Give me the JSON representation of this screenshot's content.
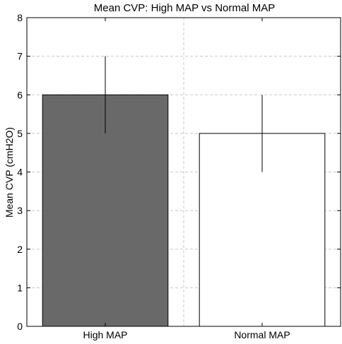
{
  "chart_data": {
    "type": "bar",
    "title": "Mean CVP: High MAP vs Normal MAP",
    "xlabel": "",
    "ylabel": "Mean CVP (cmH2O)",
    "categories": [
      "High MAP",
      "Normal MAP"
    ],
    "values": [
      6,
      5
    ],
    "error": [
      [
        5,
        7
      ],
      [
        4,
        6
      ]
    ],
    "bar_colors": [
      "#696969",
      "#ffffff"
    ],
    "ylim": [
      0,
      8
    ],
    "yticks": [
      0,
      1,
      2,
      3,
      4,
      5,
      6,
      7,
      8
    ],
    "grid": true,
    "legend": "none"
  }
}
